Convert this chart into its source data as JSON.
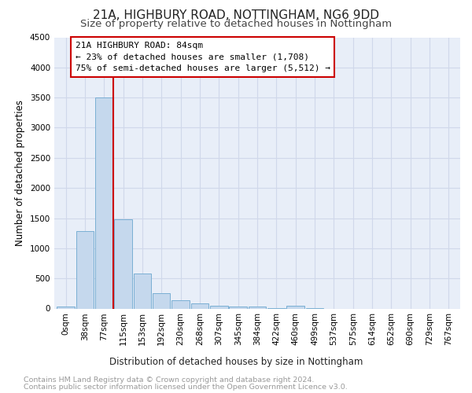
{
  "title": "21A, HIGHBURY ROAD, NOTTINGHAM, NG6 9DD",
  "subtitle": "Size of property relative to detached houses in Nottingham",
  "xlabel": "Distribution of detached houses by size in Nottingham",
  "ylabel": "Number of detached properties",
  "footer1": "Contains HM Land Registry data © Crown copyright and database right 2024.",
  "footer2": "Contains public sector information licensed under the Open Government Licence v3.0.",
  "bar_labels": [
    "0sqm",
    "38sqm",
    "77sqm",
    "115sqm",
    "153sqm",
    "192sqm",
    "230sqm",
    "268sqm",
    "307sqm",
    "345sqm",
    "384sqm",
    "422sqm",
    "460sqm",
    "499sqm",
    "537sqm",
    "575sqm",
    "614sqm",
    "652sqm",
    "690sqm",
    "729sqm",
    "767sqm"
  ],
  "bar_values": [
    30,
    1280,
    3500,
    1480,
    575,
    250,
    135,
    90,
    50,
    30,
    30,
    10,
    50,
    5,
    0,
    0,
    0,
    0,
    0,
    0,
    0
  ],
  "bar_color": "#c5d8ed",
  "bar_edge_color": "#7aafd4",
  "annotation_box_text": "21A HIGHBURY ROAD: 84sqm\n← 23% of detached houses are smaller (1,708)\n75% of semi-detached houses are larger (5,512) →",
  "annotation_box_color": "#ffffff",
  "annotation_box_edge": "#cc0000",
  "red_line_color": "#cc0000",
  "ylim": [
    0,
    4500
  ],
  "yticks": [
    0,
    500,
    1000,
    1500,
    2000,
    2500,
    3000,
    3500,
    4000,
    4500
  ],
  "grid_color": "#d0d8ea",
  "bg_color": "#e8eef8",
  "title_fontsize": 11,
  "subtitle_fontsize": 9.5,
  "axis_label_fontsize": 8.5,
  "tick_fontsize": 7.5,
  "footer_fontsize": 6.8
}
